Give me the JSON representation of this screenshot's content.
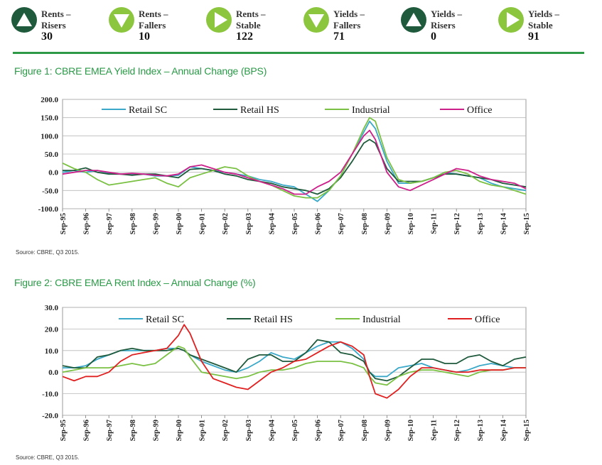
{
  "stats": [
    {
      "label1": "Rents –",
      "label2": "Risers",
      "value": "30",
      "icon": "triangle-up-icon",
      "circle": "#1f5a3c",
      "glyph": "#ffffff"
    },
    {
      "label1": "Rents –",
      "label2": "Fallers",
      "value": "10",
      "icon": "triangle-down-icon",
      "circle": "#8cc63f",
      "glyph": "#ffffff"
    },
    {
      "label1": "Rents –",
      "label2": "Stable",
      "value": "122",
      "icon": "triangle-right-icon",
      "circle": "#8cc63f",
      "glyph": "#ffffff"
    },
    {
      "label1": "Yields –",
      "label2": "Fallers",
      "value": "71",
      "icon": "triangle-down-icon",
      "circle": "#8cc63f",
      "glyph": "#ffffff"
    },
    {
      "label1": "Yields –",
      "label2": "Risers",
      "value": "0",
      "icon": "triangle-up-icon",
      "circle": "#1f5a3c",
      "glyph": "#ffffff"
    },
    {
      "label1": "Yields –",
      "label2": "Stable",
      "value": "91",
      "icon": "triangle-right-icon",
      "circle": "#8cc63f",
      "glyph": "#ffffff"
    }
  ],
  "fig1": {
    "title": "Figure 1: CBRE EMEA Yield Index – Annual Change (BPS)",
    "source": "Source: CBRE, Q3 2015."
  },
  "fig2": {
    "title": "Figure 2: CBRE EMEA Rent Index – Annual Change (%)",
    "source": "Source: CBRE, Q3 2015."
  },
  "chart_data": [
    {
      "type": "line",
      "title": "Figure 1: CBRE EMEA Yield Index – Annual Change (BPS)",
      "ylim": [
        -100,
        200
      ],
      "yticks": [
        "200.0",
        "150.0",
        "100.0",
        "50.0",
        "0.0",
        "-50.0",
        "-100.0"
      ],
      "ytick_values": [
        200,
        150,
        100,
        50,
        0,
        -50,
        -100
      ],
      "categories": [
        "Sep-95",
        "Sep-96",
        "Sep-97",
        "Sep-98",
        "Sep-99",
        "Sep-00",
        "Sep-01",
        "Sep-02",
        "Sep-03",
        "Sep-04",
        "Sep-05",
        "Sep-06",
        "Sep-07",
        "Sep-08",
        "Sep-09",
        "Sep-10",
        "Sep-11",
        "Sep-12",
        "Sep-13",
        "Sep-14",
        "Sep-15"
      ],
      "x": [
        1995.75,
        1996.25,
        1996.75,
        1997.25,
        1997.75,
        1998.25,
        1998.75,
        1999.25,
        1999.75,
        2000.25,
        2000.75,
        2001.25,
        2001.75,
        2002.25,
        2002.75,
        2003.25,
        2003.75,
        2004.25,
        2004.75,
        2005.25,
        2005.75,
        2006.25,
        2006.75,
        2007.25,
        2007.75,
        2008.25,
        2008.75,
        2009.0,
        2009.25,
        2009.75,
        2010.25,
        2010.75,
        2011.25,
        2011.75,
        2012.25,
        2012.75,
        2013.25,
        2013.75,
        2014.25,
        2014.75,
        2015.25,
        2015.75
      ],
      "series": [
        {
          "name": "Retail SC",
          "color": "#3aa8c8",
          "values": [
            0,
            5,
            0,
            5,
            -2,
            -5,
            -5,
            -5,
            -10,
            -10,
            -8,
            15,
            10,
            5,
            0,
            -5,
            -10,
            -20,
            -25,
            -35,
            -40,
            -60,
            -80,
            -50,
            -10,
            50,
            110,
            140,
            120,
            30,
            -30,
            -30,
            -25,
            -15,
            0,
            -5,
            -10,
            -15,
            -30,
            -40,
            -45,
            -50
          ]
        },
        {
          "name": "Retail HS",
          "color": "#1f5a3c",
          "values": [
            5,
            5,
            12,
            0,
            -5,
            -5,
            -8,
            -5,
            -5,
            -10,
            -15,
            8,
            10,
            5,
            -5,
            -10,
            -20,
            -25,
            -30,
            -40,
            -45,
            -50,
            -60,
            -45,
            -15,
            30,
            80,
            90,
            80,
            10,
            -25,
            -25,
            -25,
            -15,
            -5,
            -5,
            -10,
            -15,
            -20,
            -30,
            -35,
            -40
          ]
        },
        {
          "name": "Industrial",
          "color": "#7ac143",
          "values": [
            25,
            10,
            0,
            -20,
            -35,
            -30,
            -25,
            -20,
            -15,
            -30,
            -40,
            -15,
            -5,
            5,
            15,
            10,
            -10,
            -25,
            -35,
            -50,
            -65,
            -70,
            -70,
            -50,
            -10,
            50,
            120,
            150,
            140,
            40,
            -20,
            -30,
            -25,
            -15,
            0,
            5,
            -5,
            -25,
            -35,
            -40,
            -50,
            -60
          ]
        },
        {
          "name": "Office",
          "color": "#cc1f8a",
          "values": [
            -5,
            0,
            5,
            5,
            0,
            -5,
            -3,
            -5,
            -8,
            -10,
            -5,
            15,
            20,
            10,
            0,
            -5,
            -15,
            -25,
            -35,
            -45,
            -60,
            -60,
            -40,
            -25,
            0,
            50,
            100,
            115,
            90,
            0,
            -40,
            -50,
            -35,
            -20,
            -5,
            10,
            5,
            -10,
            -20,
            -25,
            -30,
            -45
          ]
        }
      ]
    },
    {
      "type": "line",
      "title": "Figure 2: CBRE EMEA Rent Index – Annual Change (%)",
      "ylim": [
        -20,
        30
      ],
      "yticks": [
        "30.0",
        "20.0",
        "10.0",
        "0.0",
        "-10.0",
        "-20.0"
      ],
      "ytick_values": [
        30,
        20,
        10,
        0,
        -10,
        -20
      ],
      "categories": [
        "Sep-95",
        "Sep-96",
        "Sep-97",
        "Sep-98",
        "Sep-99",
        "Sep-00",
        "Sep-01",
        "Sep-02",
        "Sep-03",
        "Sep-04",
        "Sep-05",
        "Sep-06",
        "Sep-07",
        "Sep-08",
        "Sep-09",
        "Sep-10",
        "Sep-11",
        "Sep-12",
        "Sep-13",
        "Sep-14",
        "Sep-15"
      ],
      "x": [
        1995.75,
        1996.25,
        1996.75,
        1997.25,
        1997.75,
        1998.25,
        1998.75,
        1999.25,
        1999.75,
        2000.25,
        2000.75,
        2001.0,
        2001.25,
        2001.75,
        2002.25,
        2002.75,
        2003.25,
        2003.75,
        2004.25,
        2004.75,
        2005.25,
        2005.75,
        2006.25,
        2006.75,
        2007.25,
        2007.75,
        2008.25,
        2008.75,
        2009.0,
        2009.25,
        2009.75,
        2010.25,
        2010.75,
        2011.25,
        2011.75,
        2012.25,
        2012.75,
        2013.25,
        2013.75,
        2014.25,
        2014.75,
        2015.25,
        2015.75
      ],
      "series": [
        {
          "name": "Retail SC",
          "color": "#3aa8c8",
          "values": [
            2,
            2,
            3,
            6,
            8,
            10,
            10,
            10,
            10,
            11,
            11,
            10,
            8,
            5,
            3,
            1,
            0,
            2,
            5,
            9,
            7,
            6,
            9,
            12,
            14,
            14,
            11,
            6,
            0,
            -2,
            -2,
            2,
            3,
            4,
            2,
            1,
            0,
            1,
            3,
            4,
            3,
            2,
            2
          ]
        },
        {
          "name": "Retail HS",
          "color": "#1f5a3c",
          "values": [
            3,
            2,
            2,
            7,
            8,
            10,
            11,
            10,
            10,
            10,
            11,
            10,
            8,
            6,
            4,
            2,
            0,
            6,
            8,
            8,
            5,
            5,
            9,
            15,
            14,
            9,
            8,
            5,
            0,
            -3,
            -4,
            -2,
            2,
            6,
            6,
            4,
            4,
            7,
            8,
            5,
            3,
            6,
            7
          ]
        },
        {
          "name": "Industrial",
          "color": "#7ac143",
          "values": [
            0,
            1,
            2,
            2,
            2,
            3,
            4,
            3,
            4,
            8,
            12,
            11,
            7,
            0,
            -1,
            -2,
            -3,
            -2,
            0,
            1,
            1,
            2,
            4,
            5,
            5,
            5,
            4,
            2,
            -2,
            -5,
            -6,
            -2,
            0,
            1,
            1,
            0,
            -1,
            -2,
            0,
            1,
            1,
            2,
            2
          ]
        },
        {
          "name": "Office",
          "color": "#e02020",
          "values": [
            -2,
            -4,
            -2,
            -2,
            0,
            5,
            8,
            9,
            10,
            11,
            17,
            22,
            18,
            5,
            -3,
            -5,
            -7,
            -8,
            -4,
            0,
            2,
            5,
            6,
            9,
            12,
            14,
            12,
            8,
            -2,
            -10,
            -12,
            -8,
            -2,
            2,
            2,
            1,
            0,
            0,
            1,
            1,
            1,
            2,
            2
          ]
        }
      ]
    }
  ]
}
